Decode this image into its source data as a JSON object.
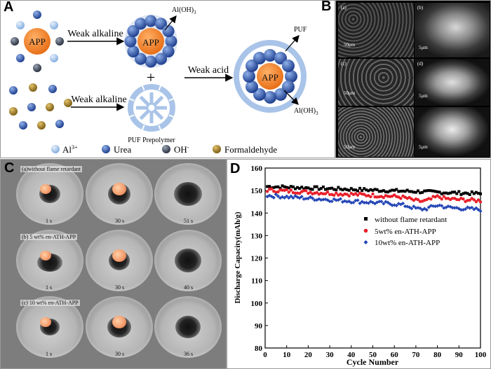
{
  "panelA": {
    "label": "A",
    "app": "APP",
    "weak_alkaline_1": "Weak alkaline",
    "weak_alkaline_2": "Weak alkaline",
    "weak_acid": "Weak acid",
    "al_oh3_1": "Al(OH)",
    "al_oh3_2": "Al(OH)",
    "subscript_3": "3",
    "plus": "+",
    "puf": "PUF",
    "puf_prepolymer": "PUF Prepolymer",
    "legend": [
      {
        "text": "Al",
        "sup": "3+",
        "color": "#a9c8ec"
      },
      {
        "text": "Urea",
        "sup": "",
        "color": "#2f5aa8"
      },
      {
        "text": "OH",
        "sup": "-",
        "color": "#3c4557"
      },
      {
        "text": "Formaldehyde",
        "sup": "",
        "color": "#a07f2a"
      }
    ]
  },
  "panelB": {
    "label": "B",
    "sub_a": "(a)",
    "sub_b": "(b)",
    "sub_c": "(c)",
    "sub_d": "(d)",
    "scale_a": "50μm",
    "scale_b": "5μm",
    "scale_c": "50μm",
    "scale_d": "5μm",
    "scale_c2": "50μm",
    "scale_e": "5μm"
  },
  "panelC": {
    "label": "C",
    "row_a": "(a)without flame retardant",
    "row_b": "(b) 5 wt% en-ATH-APP",
    "row_c": "(c) 10 wt% en-ATH-APP",
    "times": [
      [
        "1 s",
        "30 s",
        "51 s"
      ],
      [
        "1 s",
        "30 s",
        "40 s"
      ],
      [
        "1 s",
        "30 s",
        "36 s"
      ]
    ]
  },
  "panelD": {
    "label": "D"
  },
  "chart_data": {
    "type": "scatter",
    "xlabel": "Cycle Number",
    "ylabel": "Discharge Capacity(mAh/g)",
    "xlim": [
      0,
      100
    ],
    "ylim": [
      80,
      160
    ],
    "xticks": [
      0,
      10,
      20,
      30,
      40,
      50,
      60,
      70,
      80,
      90,
      100
    ],
    "yticks": [
      80,
      90,
      100,
      110,
      120,
      130,
      140,
      150,
      160
    ],
    "legend_position": "right",
    "series": [
      {
        "name": "without flame retardant",
        "color": "#000000",
        "marker": "square",
        "start": 151.8,
        "end": 148.6,
        "noise": 0.7,
        "dip": 0
      },
      {
        "name": "5wt% en-ATH-APP",
        "color": "#e8202a",
        "marker": "circle",
        "start": 150.2,
        "end": 145.5,
        "noise": 0.8,
        "dip": 1.6
      },
      {
        "name": "10wt% en-ATH-APP",
        "color": "#2546b5",
        "marker": "diamond",
        "start": 147.8,
        "end": 141.5,
        "noise": 0.8,
        "dip": 1.5
      }
    ],
    "n_cycles": 100
  }
}
